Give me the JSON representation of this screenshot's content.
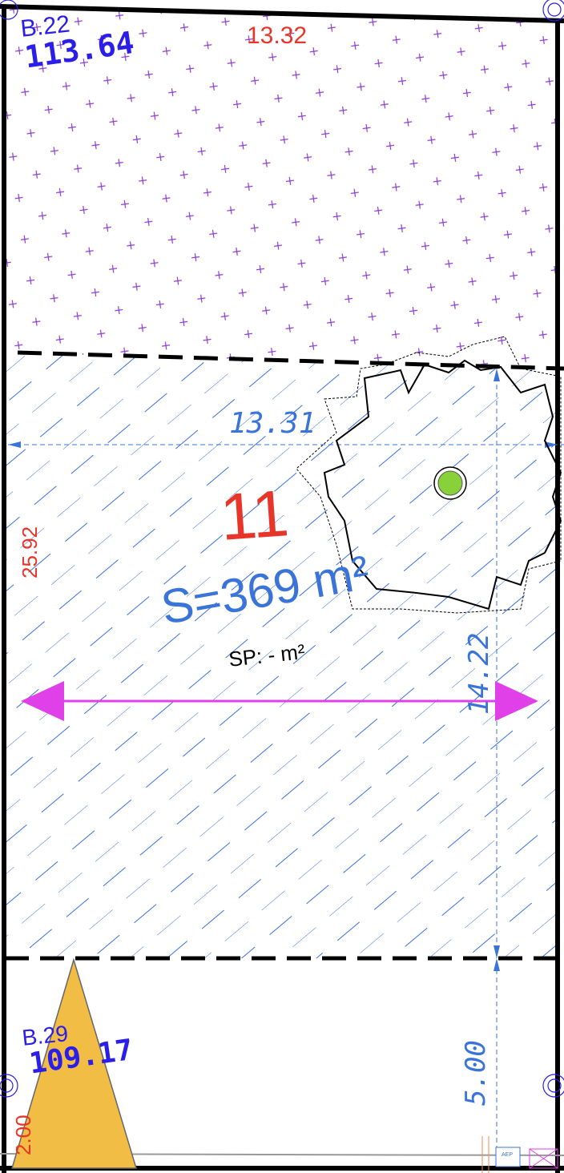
{
  "lots": {
    "top": {
      "code": "B.22",
      "elevation": "113.64",
      "width_dim": "13.32"
    },
    "main": {
      "number": "11",
      "area": "S=369 m²",
      "sp": "SP: - m²",
      "width_dim": "13.31",
      "depth_dim": "25.92",
      "setback_dim": "14.22"
    },
    "bottom": {
      "code": "B.29",
      "elevation": "109.17",
      "setback_dim": "5.00",
      "side_dim": "2.00"
    }
  },
  "utility_box": {
    "label": "AEP"
  },
  "colors": {
    "boundary": "#000000",
    "dimension_red": "#e8352a",
    "label_blue": "#2a1ee8",
    "dim_blue": "#3a74d8",
    "hatch_blue": "#3a6fe0",
    "cross_purple": "#8a3ad0",
    "arrow_magenta": "#e040e8",
    "tree_green": "#88d13a",
    "triangle_yellow": "#f2bd45"
  }
}
